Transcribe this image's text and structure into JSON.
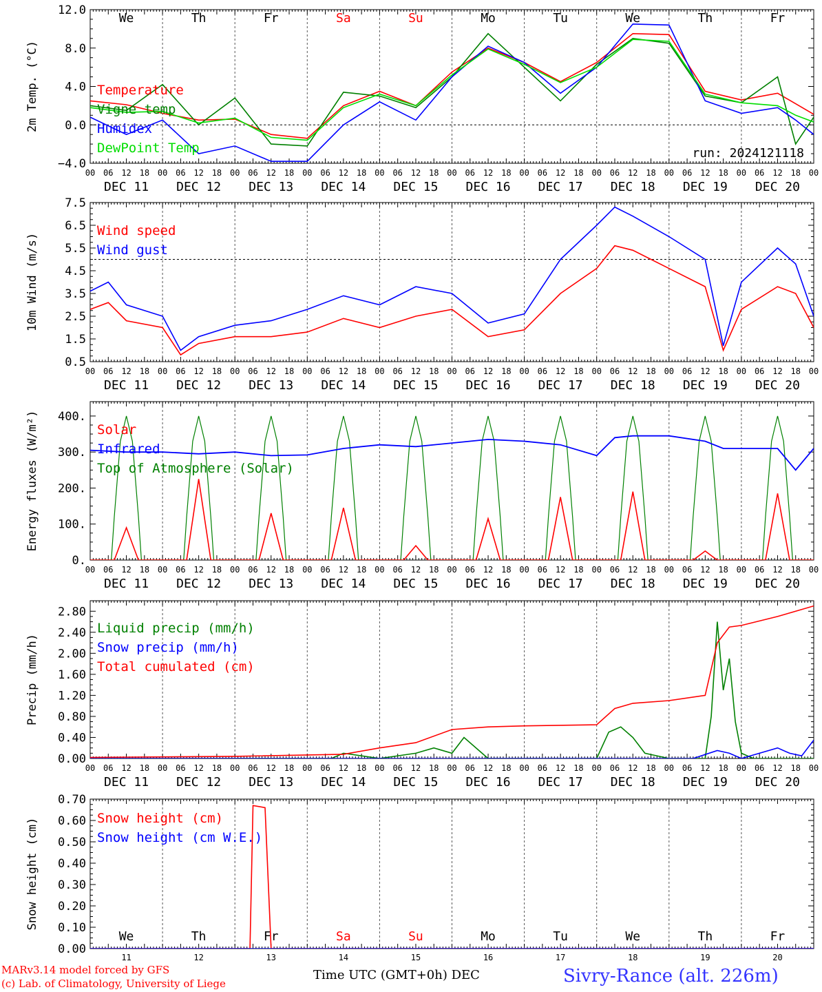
{
  "run_label": "run: 2024121118",
  "footer": {
    "model_line": "MARv3.14 model forced by GFS",
    "lab_line": "(c) Lab. of Climatology, University of Liege",
    "xaxis_label": "Time UTC (GMT+0h) DEC",
    "station": "Sivry-Rance (alt. 226m)"
  },
  "colors": {
    "red": "#ff0000",
    "green": "#008000",
    "blue": "#0000ff",
    "lightgreen": "#00dd00",
    "weekend": "#ff0000",
    "station": "#3333ff"
  },
  "days": {
    "weekday_labels": [
      "We",
      "Th",
      "Fr",
      "Sa",
      "Su",
      "Mo",
      "Tu",
      "We",
      "Th",
      "Fr"
    ],
    "weekend_flags": [
      false,
      false,
      false,
      true,
      true,
      false,
      false,
      false,
      false,
      false
    ],
    "date_labels": [
      "DEC 11",
      "DEC 12",
      "DEC 13",
      "DEC 14",
      "DEC 15",
      "DEC 16",
      "DEC 17",
      "DEC 18",
      "DEC 19",
      "DEC 20"
    ],
    "day_numbers": [
      "11",
      "12",
      "13",
      "14",
      "15",
      "16",
      "17",
      "18",
      "19",
      "20"
    ],
    "hour_ticks": [
      "00",
      "06",
      "12",
      "18"
    ],
    "final_tick": "00"
  },
  "chart_data": [
    {
      "type": "line",
      "ylabel": "2m Temp. (°C)",
      "ylim": [
        -4,
        12
      ],
      "yticks": [
        "12.0",
        "8.0",
        "4.0",
        "0.0",
        "−4.0"
      ],
      "ytick_values": [
        12,
        8,
        4,
        0,
        -4
      ],
      "ref_line": 0,
      "x_unit": "hours since DEC 11 00 UTC",
      "series": [
        {
          "name": "Temperature",
          "color": "#ff0000",
          "x": [
            0,
            12,
            24,
            36,
            48,
            60,
            72,
            84,
            96,
            108,
            120,
            132,
            144,
            156,
            168,
            180,
            192,
            204,
            216,
            228,
            234,
            240
          ],
          "y": [
            2.5,
            2.1,
            1.2,
            0.5,
            0.6,
            -1.0,
            -1.4,
            2.0,
            3.5,
            2.0,
            5.5,
            8.0,
            6.5,
            4.5,
            6.5,
            9.5,
            9.4,
            3.5,
            2.6,
            3.3,
            2.2,
            1.1
          ]
        },
        {
          "name": "Vigne temp",
          "color": "#008000",
          "x": [
            0,
            12,
            24,
            36,
            48,
            60,
            72,
            84,
            96,
            108,
            120,
            132,
            144,
            156,
            168,
            180,
            192,
            204,
            216,
            228,
            234,
            240
          ],
          "y": [
            2.0,
            1.5,
            4.2,
            0.0,
            2.8,
            -2.0,
            -2.2,
            3.4,
            3.0,
            1.8,
            5.0,
            9.5,
            6.0,
            2.5,
            6.3,
            9.0,
            8.5,
            3.0,
            2.3,
            5.0,
            -2.0,
            0.8
          ]
        },
        {
          "name": "Humidex",
          "color": "#0000ff",
          "x": [
            0,
            12,
            24,
            36,
            48,
            60,
            72,
            84,
            96,
            108,
            120,
            132,
            144,
            156,
            168,
            180,
            192,
            204,
            216,
            228,
            234,
            240
          ],
          "y": [
            0.8,
            -1.0,
            0.5,
            -3.0,
            -2.2,
            -3.8,
            -3.8,
            0.0,
            2.4,
            0.5,
            5.0,
            8.2,
            6.5,
            3.3,
            6.0,
            10.5,
            10.4,
            2.5,
            1.2,
            1.8,
            0.5,
            -1.0
          ]
        },
        {
          "name": "DewPoint Temp",
          "color": "#00dd00",
          "x": [
            0,
            12,
            24,
            36,
            48,
            60,
            72,
            84,
            96,
            108,
            120,
            132,
            144,
            156,
            168,
            180,
            192,
            204,
            216,
            228,
            234,
            240
          ],
          "y": [
            1.8,
            1.3,
            1.4,
            0.2,
            0.7,
            -1.3,
            -1.6,
            1.8,
            3.2,
            2.0,
            5.2,
            7.9,
            6.3,
            4.4,
            6.0,
            8.9,
            8.7,
            3.2,
            2.3,
            2.0,
            1.0,
            0.3
          ]
        }
      ]
    },
    {
      "type": "line",
      "ylabel": "10m Wind (m/s)",
      "ylim": [
        0.5,
        7.5
      ],
      "yticks": [
        "7.5",
        "6.5",
        "5.5",
        "4.5",
        "3.5",
        "2.5",
        "1.5",
        "0.5"
      ],
      "ytick_values": [
        7.5,
        6.5,
        5.5,
        4.5,
        3.5,
        2.5,
        1.5,
        0.5
      ],
      "ref_line": 5,
      "x_unit": "hours since DEC 11 00 UTC",
      "series": [
        {
          "name": "Wind speed",
          "color": "#ff0000",
          "x": [
            0,
            6,
            12,
            24,
            30,
            36,
            48,
            60,
            72,
            84,
            96,
            108,
            120,
            132,
            144,
            156,
            168,
            174,
            180,
            192,
            204,
            210,
            216,
            228,
            234,
            240
          ],
          "y": [
            2.8,
            3.1,
            2.3,
            2.0,
            0.8,
            1.3,
            1.6,
            1.6,
            1.8,
            2.4,
            2.0,
            2.5,
            2.8,
            1.6,
            1.9,
            3.5,
            4.6,
            5.6,
            5.4,
            4.6,
            3.8,
            1.0,
            2.8,
            3.8,
            3.5,
            2.0
          ]
        },
        {
          "name": "Wind gust",
          "color": "#0000ff",
          "x": [
            0,
            6,
            12,
            24,
            30,
            36,
            48,
            60,
            72,
            84,
            96,
            108,
            120,
            132,
            144,
            156,
            168,
            174,
            180,
            192,
            204,
            210,
            216,
            228,
            234,
            240
          ],
          "y": [
            3.6,
            4.0,
            3.0,
            2.5,
            1.0,
            1.6,
            2.1,
            2.3,
            2.8,
            3.4,
            3.0,
            3.8,
            3.5,
            2.2,
            2.6,
            5.0,
            6.5,
            7.3,
            6.9,
            6.0,
            5.0,
            1.2,
            4.0,
            5.5,
            4.8,
            2.5
          ]
        }
      ]
    },
    {
      "type": "line",
      "ylabel": "Energy fluxes (W/m²)",
      "ylim": [
        0,
        440
      ],
      "yticks": [
        "400.",
        "300.",
        "200.",
        "100.",
        "0."
      ],
      "ytick_values": [
        400,
        300,
        200,
        100,
        0
      ],
      "x_unit": "hours since DEC 11 00 UTC",
      "solar_peaks": [
        90,
        225,
        130,
        145,
        40,
        115,
        175,
        190,
        25,
        185
      ],
      "toa_peak": 400,
      "series": [
        {
          "name": "Solar",
          "color": "#ff0000"
        },
        {
          "name": "Infrared",
          "color": "#0000ff",
          "x": [
            0,
            12,
            24,
            36,
            48,
            60,
            72,
            84,
            96,
            108,
            120,
            132,
            144,
            156,
            168,
            174,
            180,
            192,
            204,
            210,
            216,
            228,
            234,
            240
          ],
          "y": [
            305,
            300,
            300,
            295,
            300,
            290,
            292,
            310,
            320,
            315,
            325,
            335,
            330,
            320,
            290,
            340,
            345,
            345,
            330,
            310,
            310,
            310,
            250,
            310
          ]
        },
        {
          "name": "Top of Atmosphere (Solar)",
          "color": "#008000"
        }
      ]
    },
    {
      "type": "line",
      "ylabel": "Precip (mm/h)",
      "ylim": [
        0,
        3.0
      ],
      "yticks": [
        "2.80",
        "2.40",
        "2.00",
        "1.60",
        "1.20",
        "0.80",
        "0.40",
        "0.00"
      ],
      "ytick_values": [
        2.8,
        2.4,
        2.0,
        1.6,
        1.2,
        0.8,
        0.4,
        0.0
      ],
      "x_unit": "hours since DEC 11 00 UTC",
      "series": [
        {
          "name": "Liquid precip (mm/h)",
          "color": "#008000",
          "x": [
            0,
            80,
            84,
            90,
            96,
            108,
            114,
            120,
            124,
            132,
            168,
            172,
            176,
            180,
            184,
            192,
            204,
            206,
            208,
            210,
            212,
            214,
            216,
            220,
            222,
            240
          ],
          "y": [
            0,
            0,
            0.1,
            0.05,
            0,
            0.1,
            0.2,
            0.1,
            0.4,
            0,
            0,
            0.5,
            0.6,
            0.4,
            0.1,
            0,
            0,
            0.8,
            2.6,
            1.3,
            1.9,
            0.7,
            0.1,
            0,
            0,
            0
          ]
        },
        {
          "name": "Snow precip (mm/h)",
          "color": "#0000ff",
          "x": [
            0,
            200,
            208,
            212,
            216,
            228,
            232,
            236,
            240
          ],
          "y": [
            0,
            0,
            0.15,
            0.1,
            0,
            0.2,
            0.1,
            0.05,
            0.35
          ]
        },
        {
          "name": "Total cumulated (cm)",
          "color": "#ff0000",
          "x": [
            0,
            48,
            84,
            96,
            108,
            120,
            132,
            144,
            168,
            174,
            180,
            192,
            204,
            208,
            212,
            216,
            228,
            240
          ],
          "y": [
            0.02,
            0.04,
            0.08,
            0.2,
            0.3,
            0.55,
            0.6,
            0.62,
            0.64,
            0.95,
            1.05,
            1.1,
            1.2,
            2.2,
            2.5,
            2.53,
            2.7,
            2.9
          ]
        }
      ]
    },
    {
      "type": "line",
      "ylabel": "Snow height (cm)",
      "ylim": [
        0,
        0.7
      ],
      "yticks": [
        "0.70",
        "0.60",
        "0.50",
        "0.40",
        "0.30",
        "0.20",
        "0.10",
        "0.00"
      ],
      "ytick_values": [
        0.7,
        0.6,
        0.5,
        0.4,
        0.3,
        0.2,
        0.1,
        0.0
      ],
      "x_unit": "hours since DEC 11 00 UTC",
      "series": [
        {
          "name": "Snow height (cm)",
          "color": "#ff0000",
          "x": [
            0,
            53,
            54,
            58,
            60,
            240
          ],
          "y": [
            0,
            0,
            0.67,
            0.66,
            0,
            0
          ]
        },
        {
          "name": "Snow height (cm W.E.)",
          "color": "#0000ff",
          "x": [
            0,
            240
          ],
          "y": [
            0,
            0
          ]
        }
      ]
    }
  ]
}
